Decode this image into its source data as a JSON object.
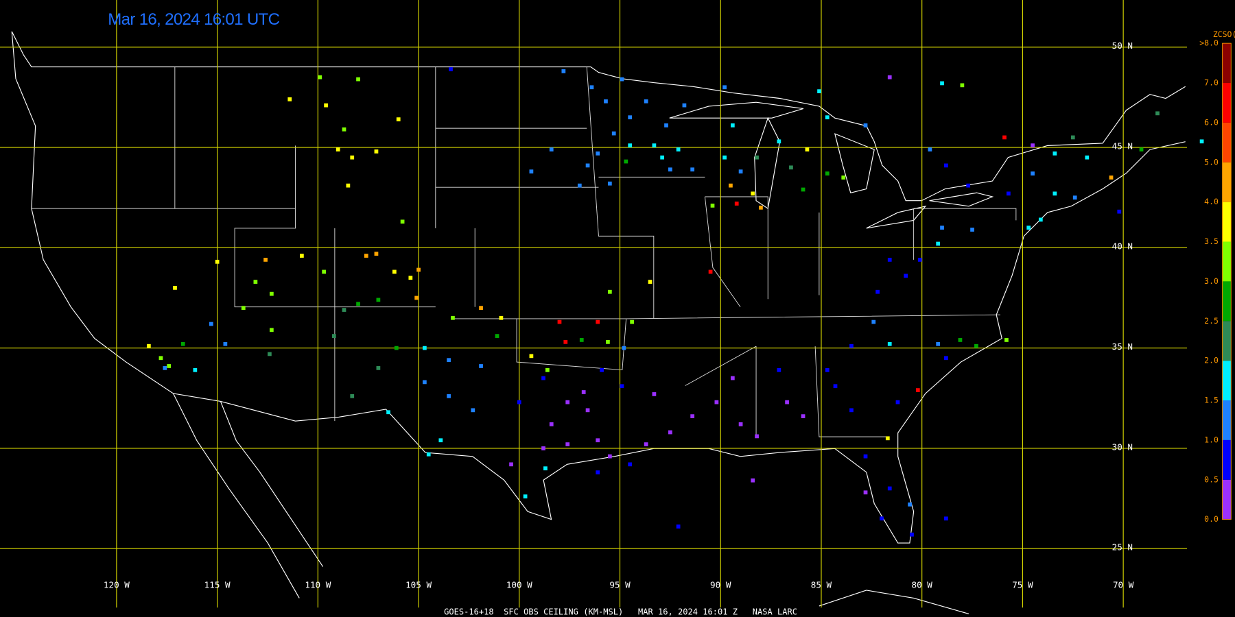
{
  "map": {
    "type": "scatter",
    "title": "Mar 16, 2024 16:01 UTC",
    "footer": "GOES-16+18  SFC OBS CEILING (KM-MSL)   MAR 16, 2024 16:01 Z   NASA LARC",
    "xlim": [
      -125.79,
      -64.45
    ],
    "ylim": [
      21.59,
      52.35
    ],
    "xticks": [
      {
        "value": -120,
        "label": "120 W"
      },
      {
        "value": -115,
        "label": "115 W"
      },
      {
        "value": -110,
        "label": "110 W"
      },
      {
        "value": -105,
        "label": "105 W"
      },
      {
        "value": -100,
        "label": "100 W"
      },
      {
        "value": -95,
        "label": "95 W"
      },
      {
        "value": -90,
        "label": "90 W"
      },
      {
        "value": -85,
        "label": "85 W"
      },
      {
        "value": -80,
        "label": "80 W"
      },
      {
        "value": -75,
        "label": "75 W"
      },
      {
        "value": -70,
        "label": "70 W"
      }
    ],
    "yticks": [
      {
        "value": 50,
        "label": "50 N"
      },
      {
        "value": 45,
        "label": "45 N"
      },
      {
        "value": 40,
        "label": "40 N"
      },
      {
        "value": 35,
        "label": "35 N"
      },
      {
        "value": 30,
        "label": "30 N"
      },
      {
        "value": 25,
        "label": "25 N"
      }
    ],
    "grid": true,
    "grid_color": "#d8d800",
    "colorbar": {
      "title": "ZCSO(km)",
      "ticks": [
        {
          "value": 0,
          "label": "0.0"
        },
        0.5,
        {
          "value": 1,
          "label": "1.0"
        },
        1.5,
        {
          "value": 2,
          "label": "2.0"
        },
        2.5,
        {
          "value": 3,
          "label": "3.0"
        },
        3.5,
        {
          "value": 4,
          "label": "4.0"
        },
        {
          "value": 5,
          "label": "5.0"
        },
        {
          "value": 6,
          "label": "6.0"
        },
        {
          "value": 7,
          "label": "7.0"
        },
        {
          "value": 8,
          "label": ">8.0"
        }
      ],
      "colors": [
        "#9b30ff",
        "#0000ff",
        "#1e82ff",
        "#00f0ff",
        "#2e8b57",
        "#00a800",
        "#7fff00",
        "#ffff00",
        "#ffa500",
        "#ff4500",
        "#ff0000",
        "#8b0000"
      ]
    },
    "x": [
      -109.9,
      -108.0,
      -111.4,
      -109.6,
      -108.7,
      -106.0,
      -109.0,
      -107.1,
      -108.3,
      -108.5,
      -105.8,
      -115.0,
      -112.6,
      -110.8,
      -113.1,
      -112.3,
      -113.7,
      -107.6,
      -107.1,
      -106.2,
      -105.4,
      -105.0,
      -105.1,
      -108.0,
      -107.0,
      -109.7,
      -117.1,
      -118.4,
      -117.8,
      -117.4,
      -116.7,
      -117.6,
      -116.1,
      -115.3,
      -114.6,
      -112.3,
      -112.4,
      -109.2,
      -108.7,
      -107.0,
      -108.3,
      -106.5,
      -106.1,
      -104.7,
      -103.3,
      -101.9,
      -100.9,
      -101.1,
      -98.0,
      -96.1,
      -97.7,
      -96.9,
      -95.6,
      -94.4,
      -99.4,
      -98.6,
      -94.8,
      -95.5,
      -93.5,
      -103.5,
      -104.7,
      -103.5,
      -102.3,
      -103.9,
      -104.5,
      -98.7,
      -99.7,
      -101.9,
      -96.8,
      -97.6,
      -96.6,
      -98.4,
      -98.8,
      -97.6,
      -96.1,
      -95.5,
      -100.4,
      -100.0,
      -98.8,
      -95.9,
      -94.9,
      -96.1,
      -94.5,
      -93.7,
      -93.3,
      -92.5,
      -91.4,
      -90.2,
      -89.0,
      -89.4,
      -88.2,
      -86.7,
      -85.9,
      -87.1,
      -84.7,
      -84.3,
      -83.5,
      -88.4,
      -92.1,
      -82.8,
      -81.6,
      -82.8,
      -82.0,
      -80.6,
      -80.5,
      -81.7,
      -78.8,
      -83.5,
      -82.4,
      -81.6,
      -79.2,
      -78.8,
      -78.1,
      -77.3,
      -75.8,
      -80.2,
      -81.2,
      -82.2,
      -80.8,
      -80.1,
      -79.2,
      -79.0,
      -77.5,
      -81.6,
      -79.6,
      -78.8,
      -77.7,
      -75.7,
      -74.5,
      -73.4,
      -73.4,
      -74.1,
      -74.7,
      -72.4,
      -71.8,
      -70.6,
      -70.2,
      -69.1,
      -68.3,
      -72.5,
      -74.5,
      -75.9,
      -84.7,
      -82.8,
      -85.7,
      -84.7,
      -83.9,
      -86.5,
      -85.9,
      -89.0,
      -88.2,
      -87.1,
      -85.1,
      -89.8,
      -91.4,
      -89.4,
      -89.8,
      -89.5,
      -89.2,
      -88.0,
      -88.4,
      -90.4,
      -90.5,
      -97.8,
      -96.4,
      -94.9,
      -95.7,
      -94.5,
      -95.3,
      -96.1,
      -96.6,
      -94.5,
      -93.3,
      -92.9,
      -92.5,
      -92.1,
      -92.7,
      -91.8,
      -93.7,
      -97.0,
      -95.5,
      -94.7,
      -99.4,
      -98.4,
      -81.6,
      -79.0,
      -78.0,
      -103.4,
      -66.1
    ],
    "y": [
      48.5,
      48.4,
      47.4,
      47.1,
      45.9,
      46.4,
      44.9,
      44.8,
      44.5,
      43.1,
      41.3,
      39.3,
      39.4,
      39.6,
      38.3,
      37.7,
      37.0,
      39.6,
      39.7,
      38.8,
      38.5,
      38.9,
      37.5,
      37.2,
      37.4,
      38.8,
      38.0,
      35.1,
      34.5,
      34.1,
      35.2,
      34.0,
      33.9,
      36.2,
      35.2,
      35.9,
      34.7,
      35.6,
      36.9,
      34.0,
      32.6,
      31.8,
      35.0,
      35.0,
      36.5,
      37.0,
      36.5,
      35.6,
      36.3,
      36.3,
      35.3,
      35.4,
      35.3,
      36.3,
      34.6,
      33.9,
      35.0,
      37.8,
      38.3,
      34.4,
      33.3,
      32.6,
      31.9,
      30.4,
      29.7,
      29.0,
      27.6,
      34.1,
      32.8,
      32.3,
      31.9,
      31.2,
      30.0,
      30.2,
      30.4,
      29.6,
      29.2,
      32.3,
      33.5,
      33.9,
      33.1,
      28.8,
      29.2,
      30.2,
      32.7,
      30.8,
      31.6,
      32.3,
      31.2,
      33.5,
      30.6,
      32.3,
      31.6,
      33.9,
      33.9,
      33.1,
      31.9,
      28.4,
      26.1,
      29.6,
      28.0,
      27.8,
      26.5,
      27.2,
      25.7,
      30.5,
      26.5,
      35.1,
      36.3,
      35.2,
      35.2,
      34.5,
      35.4,
      35.1,
      35.4,
      32.9,
      32.3,
      37.8,
      38.6,
      39.4,
      40.2,
      41.0,
      40.9,
      39.4,
      44.9,
      44.1,
      43.1,
      42.7,
      43.7,
      44.7,
      42.7,
      41.4,
      41.0,
      42.5,
      44.5,
      43.5,
      41.8,
      44.9,
      46.7,
      45.5,
      45.1,
      45.5,
      46.5,
      46.1,
      44.9,
      43.7,
      43.5,
      44.0,
      42.9,
      43.8,
      44.5,
      45.3,
      47.8,
      44.5,
      43.9,
      46.1,
      48.0,
      43.1,
      42.2,
      42.0,
      42.7,
      42.1,
      38.8,
      48.8,
      48.0,
      48.4,
      47.3,
      46.5,
      45.7,
      44.7,
      44.1,
      45.1,
      45.1,
      44.5,
      43.9,
      44.9,
      46.1,
      47.1,
      47.3,
      43.1,
      43.2,
      44.3,
      43.8,
      44.9,
      48.5,
      48.2,
      48.1,
      48.9,
      45.3
    ],
    "values": [
      3.2,
      3.2,
      3.7,
      3.7,
      3.2,
      3.7,
      3.7,
      3.7,
      3.7,
      3.7,
      3.2,
      3.7,
      4.7,
      3.7,
      3.2,
      3.2,
      3.2,
      4.7,
      4.7,
      3.7,
      3.7,
      4.7,
      4.7,
      2.7,
      2.7,
      3.2,
      3.7,
      3.7,
      3.2,
      3.2,
      2.7,
      1.2,
      1.8,
      1.2,
      1.2,
      3.2,
      2.2,
      2.2,
      2.2,
      2.2,
      2.2,
      1.8,
      2.7,
      1.8,
      3.2,
      4.7,
      3.7,
      2.7,
      6.2,
      6.8,
      6.8,
      2.7,
      3.2,
      3.2,
      3.7,
      3.2,
      1.2,
      3.2,
      3.7,
      1.2,
      1.2,
      1.2,
      1.2,
      1.8,
      1.8,
      1.8,
      1.8,
      1.2,
      0.3,
      0.3,
      0.3,
      0.3,
      0.3,
      0.3,
      0.3,
      0.3,
      0.3,
      0.8,
      0.8,
      0.8,
      0.8,
      0.8,
      0.8,
      0.3,
      0.3,
      0.3,
      0.3,
      0.3,
      0.3,
      0.3,
      0.3,
      0.3,
      0.3,
      0.8,
      0.8,
      0.8,
      0.8,
      0.3,
      0.8,
      0.8,
      0.8,
      0.3,
      0.8,
      1.2,
      0.8,
      3.7,
      0.8,
      0.8,
      1.2,
      1.8,
      1.2,
      0.8,
      2.7,
      2.7,
      3.2,
      6.2,
      0.8,
      0.8,
      0.8,
      0.8,
      1.8,
      1.2,
      1.2,
      0.8,
      1.2,
      0.8,
      0.8,
      0.8,
      1.2,
      1.8,
      1.8,
      1.8,
      1.8,
      1.2,
      1.8,
      4.7,
      0.8,
      2.7,
      2.2,
      2.2,
      0.3,
      6.2,
      1.8,
      1.2,
      3.7,
      2.7,
      3.2,
      2.2,
      2.7,
      1.2,
      2.2,
      1.8,
      1.8,
      1.8,
      1.2,
      1.8,
      1.2,
      4.7,
      6.8,
      4.7,
      3.7,
      3.2,
      6.8,
      1.2,
      1.2,
      1.2,
      1.2,
      1.2,
      1.2,
      1.2,
      1.2,
      1.8,
      1.8,
      1.8,
      1.2,
      1.8,
      1.2,
      1.2,
      1.2,
      1.2,
      1.2,
      2.7,
      1.2,
      1.2,
      0.3,
      1.8,
      3.2,
      0.8,
      1.8
    ]
  }
}
